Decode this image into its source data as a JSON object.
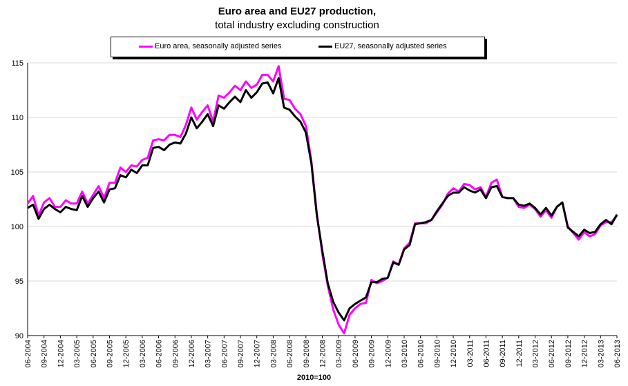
{
  "chart_data": {
    "type": "line",
    "title": "Euro area and EU27 production,",
    "subtitle": "total industry excluding construction",
    "xlabel": "2010=100",
    "ylabel": "",
    "ylim": [
      90,
      115
    ],
    "yticks": [
      90,
      95,
      100,
      105,
      110,
      115
    ],
    "grid": "horizontal",
    "legend_position": "top",
    "x_tick_labels": [
      "06-2004",
      "09-2004",
      "12-2004",
      "03-2005",
      "06-2005",
      "09-2005",
      "12-2005",
      "03-2006",
      "06-2006",
      "09-2006",
      "12-2006",
      "03-2007",
      "06-2007",
      "09-2007",
      "12-2007",
      "03-2008",
      "06-2008",
      "09-2008",
      "12-2008",
      "03-2009",
      "06-2009",
      "09-2009",
      "12-2009",
      "03-2010",
      "06-2010",
      "09-2010",
      "12-2010",
      "03-2011",
      "06-2011",
      "09-2011",
      "12-2011",
      "03-2012",
      "06-2012",
      "09-2012",
      "12-2012",
      "03-2013",
      "06-2013"
    ],
    "series": [
      {
        "name": "Euro area, seasonally adjusted series",
        "color": "#ff00ff",
        "values": [
          102.1,
          102.8,
          101.0,
          102.2,
          102.6,
          101.8,
          101.8,
          102.4,
          102.1,
          102.1,
          103.2,
          102.1,
          102.9,
          103.7,
          102.6,
          104.0,
          104.0,
          105.4,
          105.0,
          105.6,
          105.5,
          106.1,
          106.3,
          107.9,
          108.0,
          107.9,
          108.4,
          108.4,
          108.2,
          109.3,
          110.9,
          109.8,
          110.5,
          111.1,
          109.6,
          112.0,
          111.8,
          112.3,
          112.9,
          112.5,
          113.3,
          112.7,
          113.0,
          113.9,
          113.9,
          113.3,
          114.7,
          111.7,
          111.6,
          110.8,
          110.3,
          109.2,
          106.0,
          101.2,
          97.5,
          94.6,
          92.4,
          91.0,
          90.2,
          91.9,
          92.5,
          92.9,
          93.0,
          95.1,
          94.8,
          95.0,
          95.3,
          96.8,
          96.5,
          98.0,
          98.5,
          100.3,
          100.3,
          100.3,
          100.6,
          101.3,
          102.0,
          103.0,
          103.5,
          103.2,
          103.9,
          103.8,
          103.4,
          103.6,
          102.7,
          104.0,
          104.3,
          102.7,
          102.6,
          102.6,
          101.8,
          101.7,
          102.0,
          101.6,
          100.9,
          101.5,
          100.8,
          101.8,
          102.2,
          100.0,
          99.4,
          98.8,
          99.5,
          99.1,
          99.3,
          100.1,
          100.4,
          100.4,
          101.0
        ]
      },
      {
        "name": "EU27, seasonally adjusted series",
        "color": "#000000",
        "values": [
          101.7,
          102.0,
          100.7,
          101.6,
          102.0,
          101.6,
          101.3,
          101.8,
          101.6,
          101.5,
          102.8,
          101.8,
          102.6,
          103.2,
          102.2,
          103.4,
          103.5,
          104.7,
          104.5,
          105.2,
          104.9,
          105.6,
          105.6,
          107.2,
          107.3,
          107.0,
          107.5,
          107.7,
          107.6,
          108.5,
          110.0,
          109.0,
          109.6,
          110.3,
          109.2,
          111.1,
          110.8,
          111.4,
          111.9,
          111.4,
          112.5,
          111.8,
          112.3,
          113.1,
          113.2,
          112.2,
          113.6,
          110.9,
          110.7,
          110.1,
          109.6,
          108.6,
          105.8,
          101.0,
          97.8,
          94.8,
          93.1,
          92.1,
          91.4,
          92.5,
          92.9,
          93.2,
          93.5,
          94.9,
          94.9,
          95.2,
          95.3,
          96.7,
          96.5,
          97.9,
          98.3,
          100.2,
          100.3,
          100.4,
          100.6,
          101.4,
          102.1,
          102.8,
          103.1,
          103.1,
          103.6,
          103.3,
          103.1,
          103.4,
          102.6,
          103.6,
          103.7,
          102.7,
          102.6,
          102.6,
          102.0,
          101.9,
          102.1,
          101.7,
          101.1,
          101.7,
          101.0,
          101.8,
          102.2,
          99.9,
          99.5,
          99.1,
          99.7,
          99.4,
          99.5,
          100.2,
          100.6,
          100.2,
          101.1
        ]
      }
    ]
  }
}
